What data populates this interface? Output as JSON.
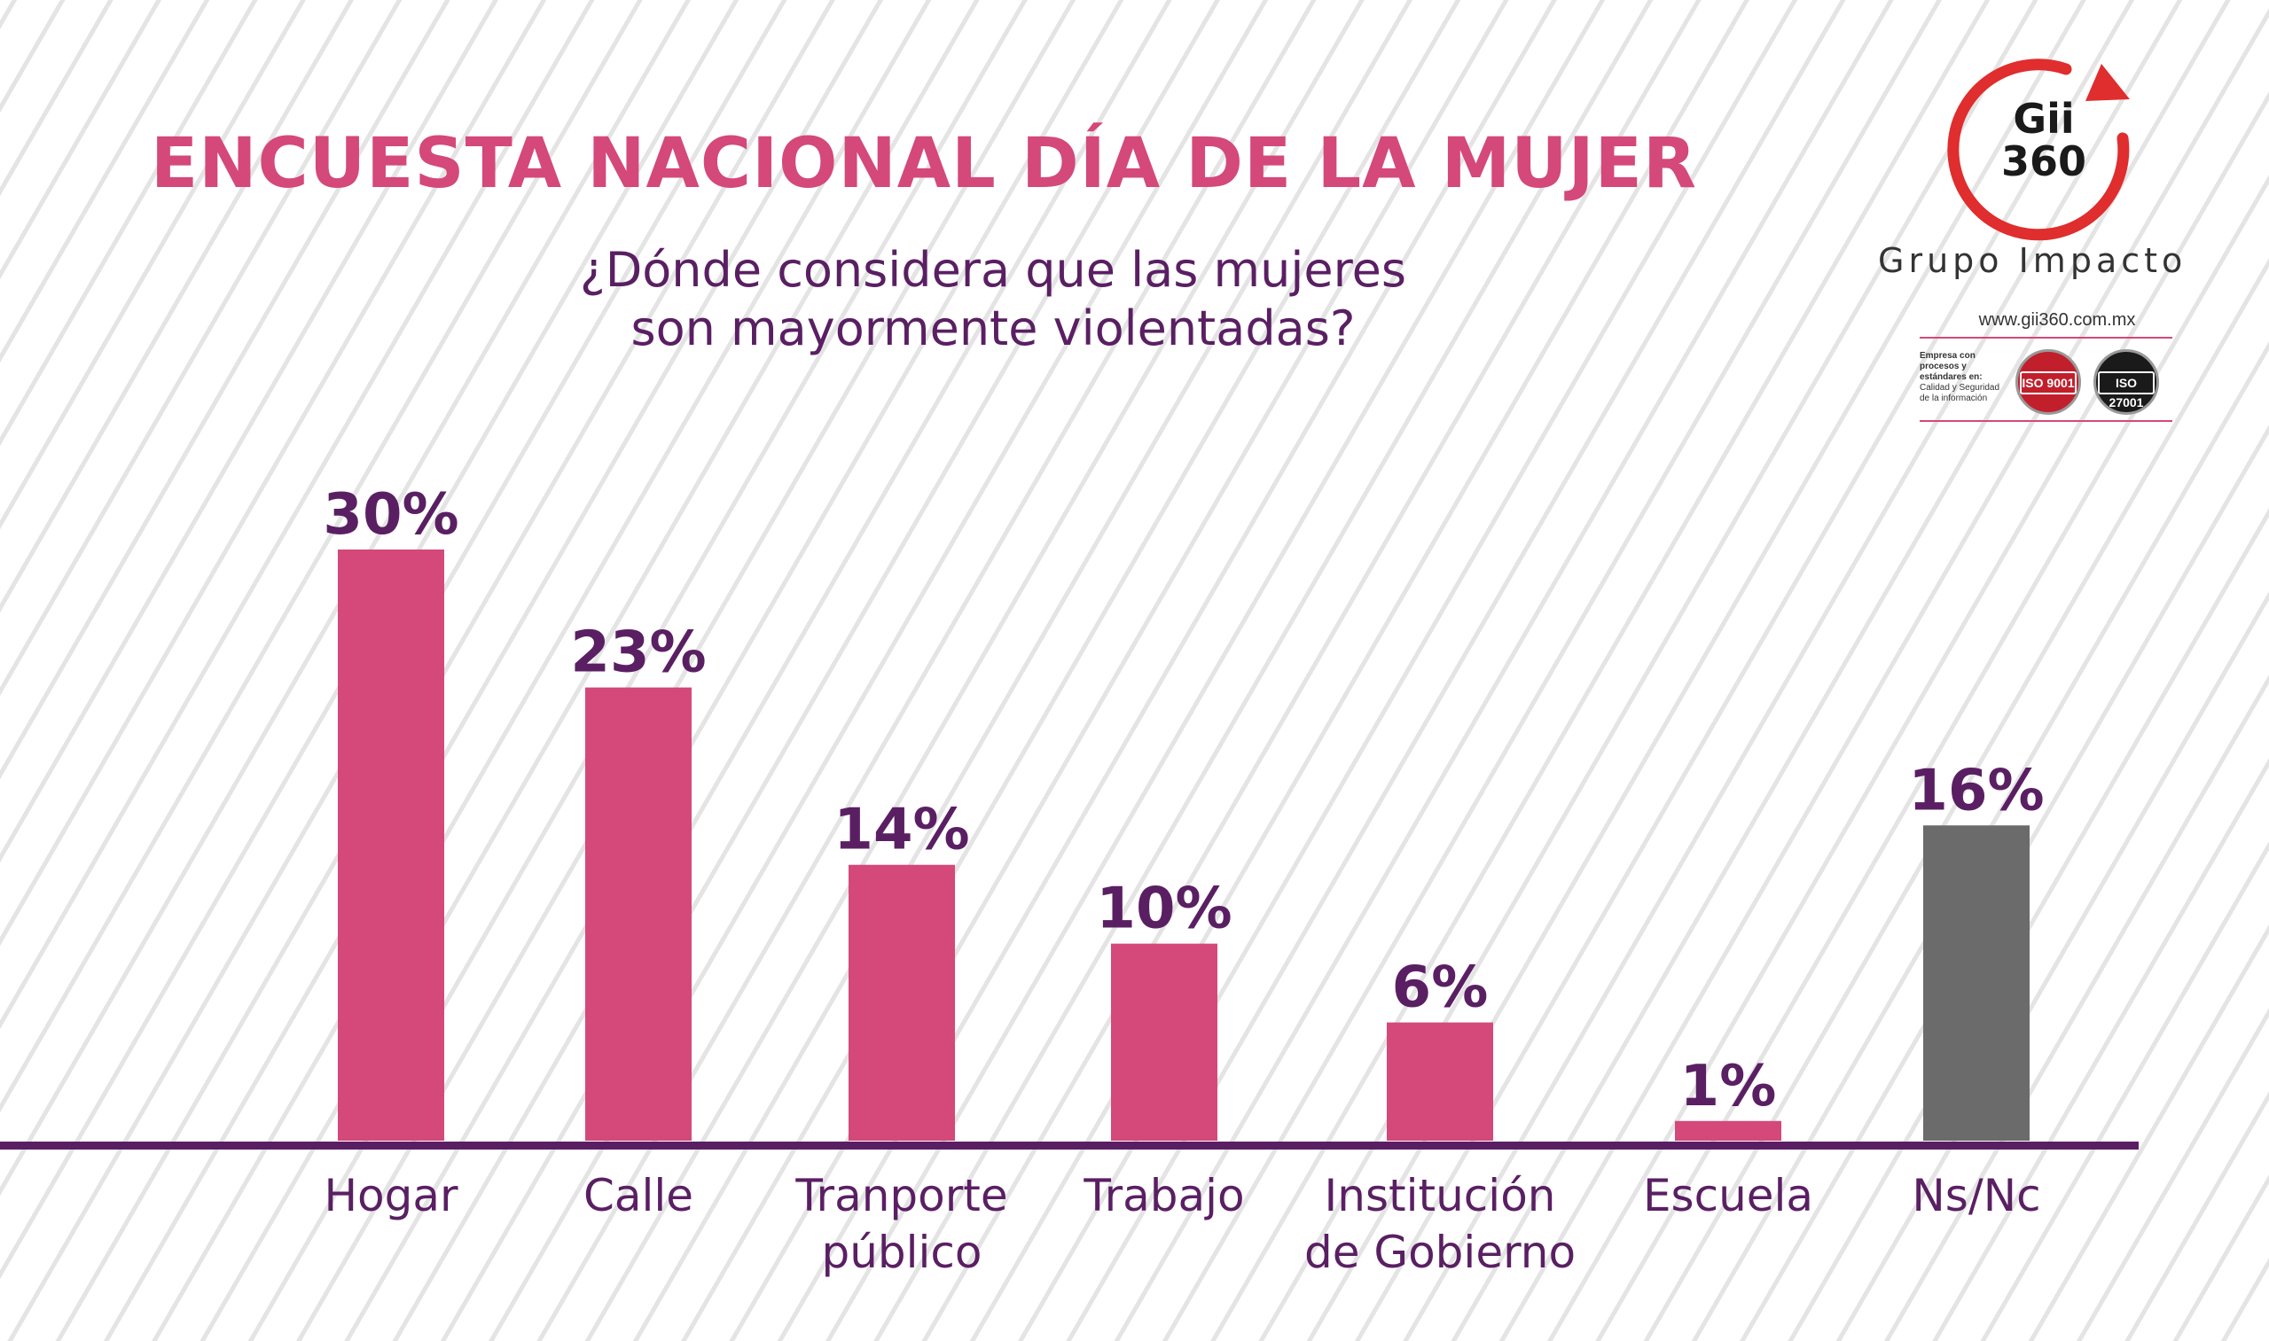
{
  "header": {
    "title": "ENCUESTA NACIONAL DÍA DE LA MUJER",
    "subtitle_line1": "¿Dónde considera que las mujeres",
    "subtitle_line2": "son mayormente violentadas?"
  },
  "brand": {
    "logo_line1": "Gii",
    "logo_line2": "360",
    "name": "Grupo Impacto",
    "url": "www.gii360.com.mx",
    "iso_heading": "Empresa con procesos y estándares en:",
    "iso_line1": "Calidad y Seguridad",
    "iso_line2": "de la información",
    "iso_badges": [
      "ISO 9001",
      "ISO 27001"
    ],
    "accent_color": "#e02d2d"
  },
  "chart_data": {
    "type": "bar",
    "categories": [
      [
        "Hogar"
      ],
      [
        "Calle"
      ],
      [
        "Tranporte",
        "público"
      ],
      [
        "Trabajo"
      ],
      [
        "Institución",
        "de Gobierno"
      ],
      [
        "Escuela"
      ],
      [
        "Ns/Nc"
      ]
    ],
    "values": [
      30,
      23,
      14,
      10,
      6,
      1,
      16
    ],
    "value_labels": [
      "30%",
      "23%",
      "14%",
      "10%",
      "6%",
      "1%",
      "16%"
    ],
    "ylim": [
      0,
      30
    ],
    "colors": [
      "#d4487a",
      "#d4487a",
      "#d4487a",
      "#d4487a",
      "#d4487a",
      "#d4487a",
      "#6b6b6b"
    ],
    "label_color": "#5a1f63",
    "axis_color": "#5a1f63",
    "grid": false
  }
}
